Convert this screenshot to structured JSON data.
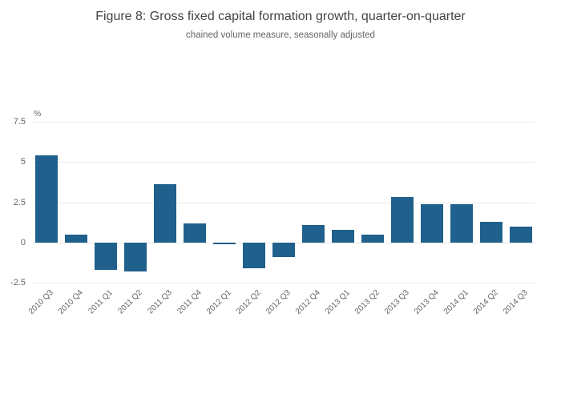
{
  "title": "Figure 8: Gross fixed capital formation growth, quarter-on-quarter",
  "subtitle": "chained volume measure, seasonally adjusted",
  "chart_data": {
    "type": "bar",
    "title": "Figure 8: Gross fixed capital formation growth, quarter-on-quarter",
    "subtitle": "chained volume measure, seasonally adjusted",
    "xlabel": "",
    "ylabel": "%",
    "categories": [
      "2010 Q3",
      "2010 Q4",
      "2011 Q1",
      "2011 Q2",
      "2011 Q3",
      "2011 Q4",
      "2012 Q1",
      "2012 Q2",
      "2012 Q3",
      "2012 Q4",
      "2013 Q1",
      "2013 Q2",
      "2013 Q3",
      "2013 Q4",
      "2014 Q1",
      "2014 Q2",
      "2014 Q3"
    ],
    "values": [
      5.4,
      0.5,
      -1.7,
      -1.8,
      3.6,
      1.2,
      -0.1,
      -1.6,
      -0.9,
      1.1,
      0.8,
      0.5,
      2.8,
      2.4,
      2.4,
      1.3,
      1.0
    ],
    "ylim": [
      -2.5,
      7.5
    ],
    "yticks": [
      7.5,
      5,
      2.5,
      0,
      -2.5
    ],
    "ytick_labels": [
      "7.5",
      "5",
      "2.5",
      "0",
      "-2.5"
    ],
    "bar_color": "#20608c",
    "grid_color": "#e8e8e8",
    "grid": "horizontal",
    "legend": "none"
  }
}
